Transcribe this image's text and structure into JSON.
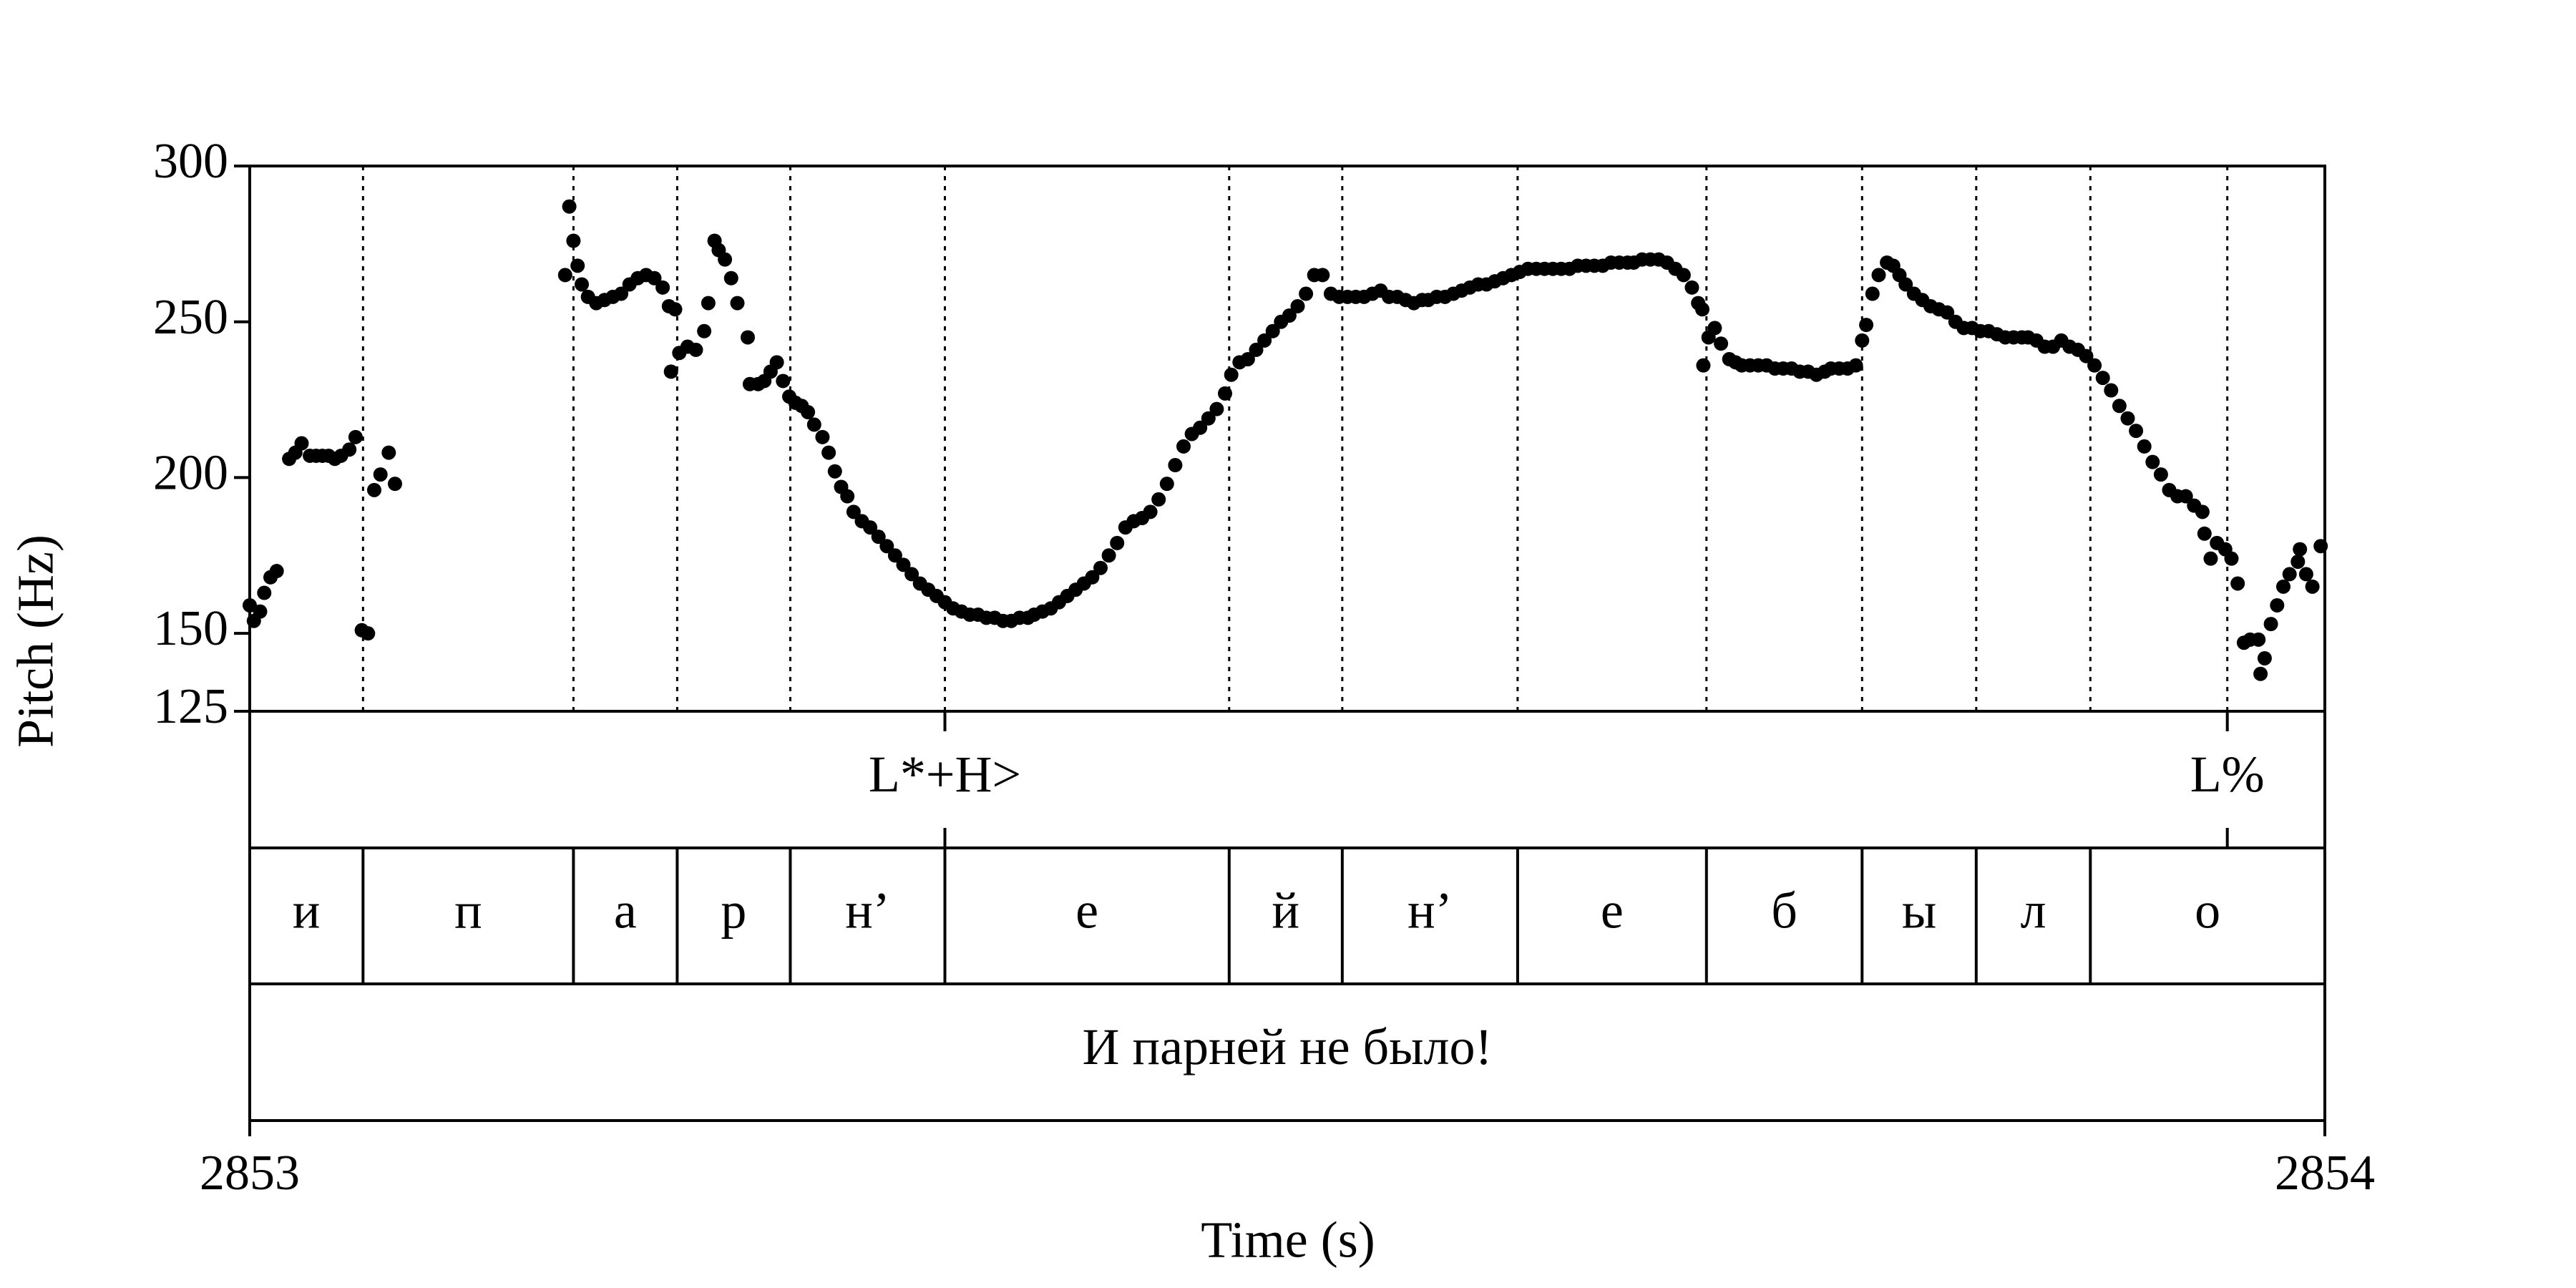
{
  "chart_data": {
    "type": "scatter",
    "x_label": "Time (s)",
    "y_label": "Pitch (Hz)",
    "color": "#000000",
    "xlim": [
      2853,
      2854
    ],
    "xticks": [
      2853,
      2854
    ],
    "ylim": [
      125,
      300
    ],
    "yticks": [
      125,
      150,
      200,
      250,
      300
    ],
    "x": [
      2853.0,
      2853.002,
      2853.005,
      2853.007,
      2853.01,
      2853.013,
      2853.019,
      2853.022,
      2853.025,
      2853.029,
      2853.032,
      2853.035,
      2853.038,
      2853.041,
      2853.044,
      2853.048,
      2853.051,
      2853.054,
      2853.057,
      2853.06,
      2853.063,
      2853.067,
      2853.07,
      2853.152,
      2853.154,
      2853.156,
      2853.158,
      2853.16,
      2853.163,
      2853.167,
      2853.171,
      2853.175,
      2853.179,
      2853.183,
      2853.187,
      2853.191,
      2853.195,
      2853.199,
      2853.202,
      2853.205,
      2853.203,
      2853.207,
      2853.211,
      2853.215,
      2853.219,
      2853.221,
      2853.224,
      2853.226,
      2853.229,
      2853.232,
      2853.235,
      2853.24,
      2853.241,
      2853.245,
      2853.248,
      2853.251,
      2853.254,
      2853.257,
      2853.26,
      2853.263,
      2853.266,
      2853.269,
      2853.272,
      2853.276,
      2853.279,
      2853.282,
      2853.285,
      2853.288,
      2853.291,
      2853.295,
      2853.299,
      2853.303,
      2853.307,
      2853.311,
      2853.315,
      2853.319,
      2853.323,
      2853.327,
      2853.331,
      2853.335,
      2853.339,
      2853.343,
      2853.347,
      2853.351,
      2853.355,
      2853.359,
      2853.363,
      2853.367,
      2853.371,
      2853.375,
      2853.378,
      2853.382,
      2853.386,
      2853.39,
      2853.394,
      2853.398,
      2853.402,
      2853.406,
      2853.41,
      2853.414,
      2853.418,
      2853.422,
      2853.426,
      2853.43,
      2853.434,
      2853.438,
      2853.442,
      2853.446,
      2853.45,
      2853.454,
      2853.458,
      2853.462,
      2853.466,
      2853.47,
      2853.473,
      2853.477,
      2853.481,
      2853.485,
      2853.489,
      2853.493,
      2853.497,
      2853.501,
      2853.505,
      2853.509,
      2853.513,
      2853.517,
      2853.521,
      2853.525,
      2853.529,
      2853.533,
      2853.537,
      2853.541,
      2853.545,
      2853.549,
      2853.553,
      2853.557,
      2853.561,
      2853.565,
      2853.568,
      2853.572,
      2853.576,
      2853.58,
      2853.584,
      2853.588,
      2853.592,
      2853.596,
      2853.6,
      2853.604,
      2853.608,
      2853.612,
      2853.616,
      2853.62,
      2853.624,
      2853.628,
      2853.632,
      2853.636,
      2853.64,
      2853.644,
      2853.648,
      2853.652,
      2853.656,
      2853.66,
      2853.664,
      2853.667,
      2853.671,
      2853.675,
      2853.679,
      2853.683,
      2853.687,
      2853.691,
      2853.695,
      2853.698,
      2853.7,
      2853.7005,
      2853.703,
      2853.706,
      2853.709,
      2853.713,
      2853.716,
      2853.719,
      2853.723,
      2853.727,
      2853.731,
      2853.735,
      2853.739,
      2853.743,
      2853.747,
      2853.751,
      2853.755,
      2853.759,
      2853.762,
      2853.766,
      2853.77,
      2853.774,
      2853.777,
      2853.779,
      2853.782,
      2853.785,
      2853.789,
      2853.792,
      2853.795,
      2853.798,
      2853.802,
      2853.806,
      2853.81,
      2853.814,
      2853.818,
      2853.822,
      2853.826,
      2853.83,
      2853.834,
      2853.838,
      2853.842,
      2853.846,
      2853.85,
      2853.854,
      2853.857,
      2853.861,
      2853.865,
      2853.869,
      2853.873,
      2853.877,
      2853.881,
      2853.885,
      2853.889,
      2853.893,
      2853.897,
      2853.901,
      2853.905,
      2853.909,
      2853.913,
      2853.917,
      2853.921,
      2853.925,
      2853.929,
      2853.933,
      2853.937,
      2853.941,
      2853.942,
      2853.945,
      2853.948,
      2853.952,
      2853.955,
      2853.958,
      2853.961,
      2853.964,
      2853.968,
      2853.971,
      2853.969,
      2853.974,
      2853.977,
      2853.98,
      2853.983,
      2853.987,
      2853.988,
      2853.991,
      2853.994,
      2853.998
    ],
    "values": [
      159,
      154,
      157,
      163,
      168,
      170,
      206,
      208,
      211,
      207,
      207,
      207,
      207,
      206,
      207,
      209,
      213,
      151,
      150,
      196,
      201,
      208,
      198,
      265,
      287,
      276,
      268,
      262,
      258,
      256,
      257,
      258,
      259,
      262,
      264,
      265,
      264,
      261,
      255,
      254,
      234,
      240,
      242,
      241,
      247,
      256,
      276,
      273,
      270,
      264,
      256,
      245,
      230,
      230,
      231,
      234,
      237,
      231,
      226,
      224,
      223,
      221,
      217,
      213,
      208,
      202,
      197,
      194,
      189,
      186,
      184,
      181,
      178,
      175,
      172,
      169,
      166,
      164,
      162,
      160,
      158,
      157,
      156,
      156,
      155,
      155,
      154,
      154,
      155,
      155,
      156,
      157,
      158,
      160,
      162,
      164,
      166,
      168,
      171,
      175,
      179,
      184,
      186,
      187,
      189,
      193,
      198,
      204,
      210,
      214,
      216,
      219,
      222,
      227,
      233,
      237,
      238,
      241,
      244,
      247,
      250,
      252,
      255,
      259,
      265,
      265,
      259,
      258,
      258,
      258,
      258,
      259,
      260,
      258,
      258,
      257,
      256,
      257,
      257,
      258,
      258,
      259,
      260,
      261,
      262,
      262,
      263,
      264,
      265,
      266,
      267,
      267,
      267,
      267,
      267,
      267,
      268,
      268,
      268,
      268,
      269,
      269,
      269,
      269,
      270,
      270,
      270,
      269,
      267,
      265,
      261,
      256,
      254,
      236,
      245,
      248,
      243,
      238,
      237,
      236,
      236,
      236,
      236,
      235,
      235,
      235,
      234,
      234,
      233,
      234,
      235,
      235,
      235,
      236,
      244,
      249,
      259,
      265,
      269,
      268,
      265,
      262,
      259,
      257,
      255,
      254,
      253,
      250,
      248,
      248,
      247,
      247,
      246,
      245,
      245,
      245,
      245,
      244,
      242,
      242,
      244,
      242,
      241,
      239,
      236,
      232,
      228,
      223,
      219,
      215,
      210,
      205,
      201,
      196,
      194,
      194,
      191,
      189,
      182,
      174,
      179,
      177,
      174,
      166,
      147,
      148,
      148,
      142,
      137,
      153,
      159,
      165,
      169,
      173,
      177,
      169,
      165,
      178
    ],
    "tones": {
      "times": [
        2853.335,
        2853.953
      ],
      "labels": [
        "L*+H>",
        "L%"
      ]
    },
    "segments": {
      "boundaries": [
        2853.0546,
        2853.156,
        2853.206,
        2853.2605,
        2853.335,
        2853.472,
        2853.5265,
        2853.611,
        2853.702,
        2853.777,
        2853.832,
        2853.887
      ],
      "labels": [
        "и",
        "п",
        "а",
        "р",
        "н’",
        "е",
        "й",
        "н’",
        "е",
        "б",
        "ы",
        "л",
        "о"
      ]
    },
    "sentence": "И парней не было!"
  }
}
